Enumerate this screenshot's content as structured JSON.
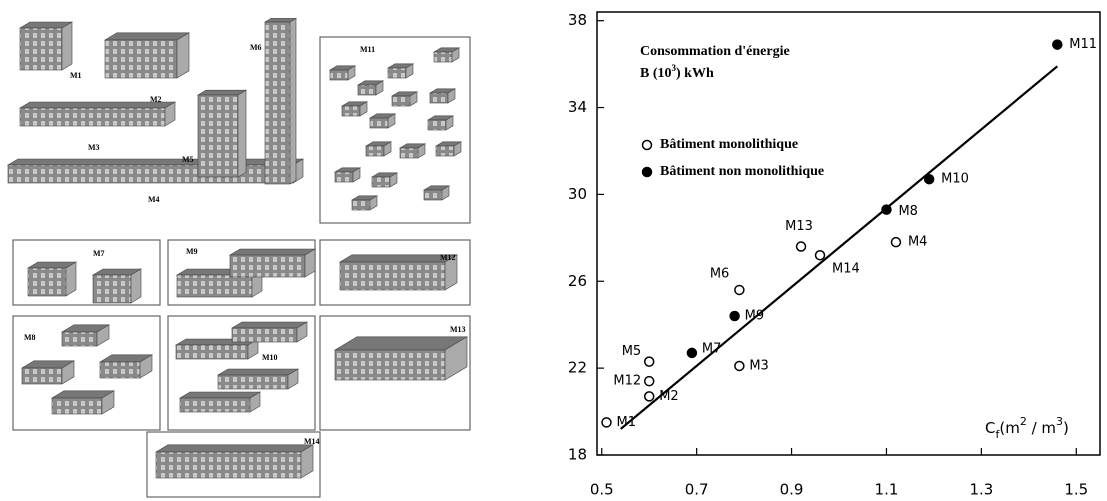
{
  "illustration": {
    "labels": [
      "M1",
      "M2",
      "M3",
      "M4",
      "M5",
      "M6",
      "M7",
      "M8",
      "M9",
      "M10",
      "M11",
      "M12",
      "M13",
      "M14"
    ]
  },
  "chart_data": {
    "type": "scatter",
    "annotation": "Consommation d'énergie",
    "ylabel_parts": [
      "B (10",
      "3",
      ") kWh"
    ],
    "xlabel_parts": [
      "C",
      "f",
      "(m",
      "2",
      " / m",
      "3",
      ")"
    ],
    "xlim": [
      0.49,
      1.55
    ],
    "xticks": [
      0.5,
      0.7,
      0.9,
      1.1,
      1.3,
      1.5
    ],
    "ylim": [
      18,
      38.4
    ],
    "yticks": [
      18,
      22,
      26,
      30,
      34,
      38
    ],
    "legend": "upper left",
    "series": [
      {
        "name": "Bâtiment monolithique",
        "color": "#000000",
        "filled": false,
        "labels": [
          "M1",
          "M2",
          "M12",
          "M5",
          "M3",
          "M6",
          "M13",
          "M14",
          "M4"
        ],
        "x": [
          0.51,
          0.6,
          0.6,
          0.6,
          0.79,
          0.79,
          0.92,
          0.96,
          1.12
        ],
        "values": [
          19.5,
          20.7,
          21.4,
          22.3,
          22.1,
          25.6,
          27.6,
          27.2,
          27.8
        ]
      },
      {
        "name": "Bâtiment non monolithique",
        "color": "#000000",
        "filled": true,
        "labels": [
          "M7",
          "M9",
          "M8",
          "M10",
          "M11"
        ],
        "x": [
          0.69,
          0.78,
          1.1,
          1.19,
          1.46
        ],
        "values": [
          22.7,
          24.4,
          29.3,
          30.7,
          36.9
        ]
      }
    ],
    "fit_line": {
      "x": [
        0.54,
        1.46
      ],
      "values": [
        19.2,
        35.9
      ]
    }
  }
}
